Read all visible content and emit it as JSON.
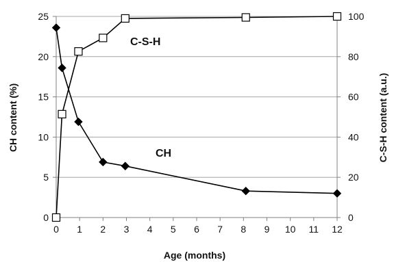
{
  "chart_data": {
    "type": "line",
    "xlabel": "Age (months)",
    "ylabel": "CH content (%)",
    "y2label": "C-S-H content (a.u.)",
    "xlim": [
      0,
      12
    ],
    "ylim": [
      0,
      25
    ],
    "y2lim": [
      0,
      100
    ],
    "x_ticks": [
      "0",
      "1",
      "2",
      "3",
      "4",
      "5",
      "6",
      "7",
      "8",
      "9",
      "10",
      "11",
      "12"
    ],
    "y_ticks": [
      "0",
      "5",
      "10",
      "15",
      "20",
      "25"
    ],
    "y2_ticks": [
      "0",
      "20",
      "40",
      "60",
      "80",
      "100"
    ],
    "grid": "horizontal",
    "series": [
      {
        "name": "CH",
        "axis": "left",
        "marker": "filled-diamond",
        "x": [
          0,
          0.25,
          0.95,
          2.0,
          2.95,
          8.1,
          12
        ],
        "y": [
          23.6,
          18.6,
          11.9,
          6.9,
          6.4,
          3.3,
          3.0
        ]
      },
      {
        "name": "C-S-H",
        "axis": "right",
        "marker": "open-square",
        "x": [
          0,
          0.25,
          0.95,
          2.0,
          2.95,
          8.1,
          12
        ],
        "y": [
          0,
          51.4,
          82.6,
          89.3,
          99.0,
          99.5,
          100
        ]
      }
    ],
    "colors": {
      "line": "#000000",
      "grid": "#a6a6a6",
      "marker_fill_open": "#ffffff"
    }
  }
}
